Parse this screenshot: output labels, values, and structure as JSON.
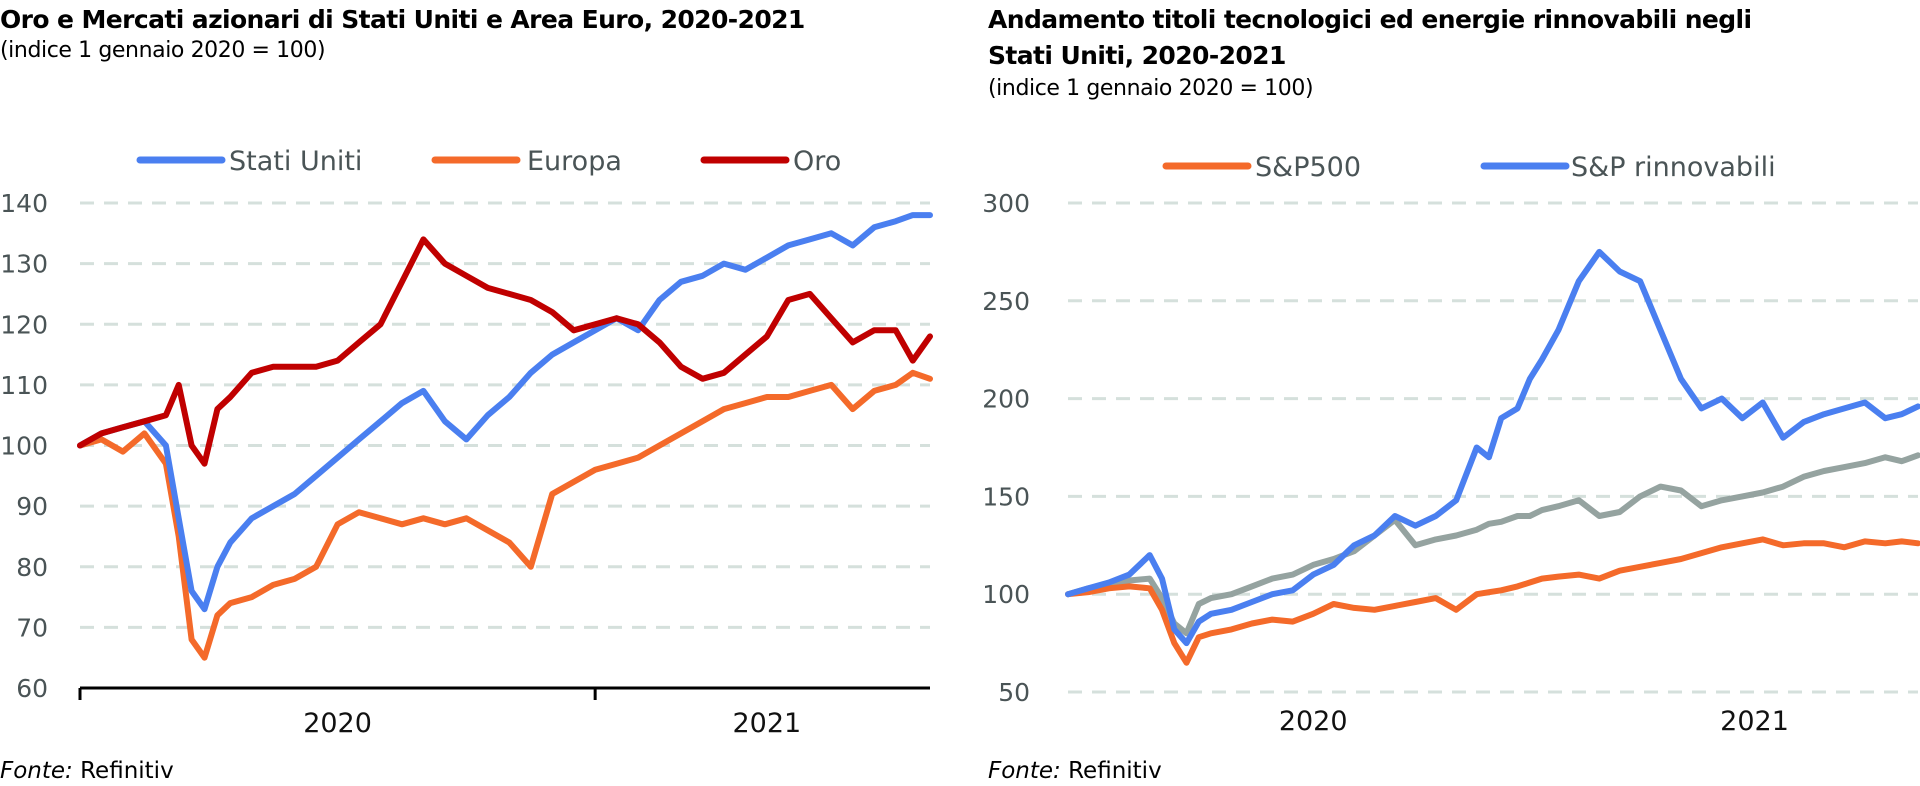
{
  "left_panel": {
    "title": "Oro e Mercati azionari di Stati Uniti e Area Euro, 2020-2021",
    "subtitle": "(indice 1 gennaio 2020 = 100)",
    "source_label": "Fonte:",
    "source_value": "Refinitiv"
  },
  "right_panel": {
    "title_line1": "Andamento titoli tecnologici ed energie rinnovabili negli",
    "title_line2": "Stati Uniti, 2020-2021",
    "subtitle": "(indice 1 gennaio 2020 = 100)",
    "source_label": "Fonte:",
    "source_value": "Refinitiv"
  },
  "chart_data": [
    {
      "type": "line",
      "title": "Oro e Mercati azionari di Stati Uniti e Area Euro, 2020-2021",
      "subtitle": "(indice 1 gennaio 2020 = 100)",
      "xlabel": "",
      "ylabel": "",
      "ylim": [
        60,
        140
      ],
      "yticks": [
        60,
        70,
        80,
        90,
        100,
        110,
        120,
        130,
        140
      ],
      "x_unit": "months since 1 Jan 2020",
      "xlim": [
        0,
        19.8
      ],
      "x_tick_at": [
        0,
        12
      ],
      "x_category_labels": [
        {
          "label": "2020",
          "center": 6
        },
        {
          "label": "2021",
          "center": 16
        }
      ],
      "grid": "horizontal dashed",
      "legend_position": "top",
      "x": [
        0,
        0.5,
        1,
        1.5,
        2,
        2.3,
        2.6,
        2.9,
        3.2,
        3.5,
        4,
        4.5,
        5,
        5.5,
        6,
        6.5,
        7,
        7.5,
        8,
        8.5,
        9,
        9.5,
        10,
        10.5,
        11,
        11.5,
        12,
        12.5,
        13,
        13.5,
        14,
        14.5,
        15,
        15.5,
        16,
        16.5,
        17,
        17.5,
        18,
        18.5,
        19,
        19.4,
        19.8
      ],
      "series": [
        {
          "name": "Stati Uniti",
          "color": "#4a7ff0",
          "values": [
            100,
            102,
            103,
            104,
            100,
            88,
            76,
            73,
            80,
            84,
            88,
            90,
            92,
            95,
            98,
            101,
            104,
            107,
            109,
            104,
            101,
            105,
            108,
            112,
            115,
            117,
            119,
            121,
            119,
            124,
            127,
            128,
            130,
            129,
            131,
            133,
            134,
            135,
            133,
            136,
            137,
            138,
            138
          ]
        },
        {
          "name": "Europa",
          "color": "#f46a2a",
          "values": [
            100,
            101,
            99,
            102,
            97,
            85,
            68,
            65,
            72,
            74,
            75,
            77,
            78,
            80,
            87,
            89,
            88,
            87,
            88,
            87,
            88,
            86,
            84,
            80,
            92,
            94,
            96,
            97,
            98,
            100,
            102,
            104,
            106,
            107,
            108,
            108,
            109,
            110,
            106,
            109,
            110,
            112,
            111
          ]
        },
        {
          "name": "Oro",
          "color": "#c00000",
          "values": [
            100,
            102,
            103,
            104,
            105,
            110,
            100,
            97,
            106,
            108,
            112,
            113,
            113,
            113,
            114,
            117,
            120,
            127,
            134,
            130,
            128,
            126,
            125,
            124,
            122,
            119,
            120,
            121,
            120,
            117,
            113,
            111,
            112,
            115,
            118,
            124,
            125,
            121,
            117,
            119,
            119,
            114,
            118
          ]
        }
      ]
    },
    {
      "type": "line",
      "title": "Andamento titoli tecnologici ed energie rinnovabili negli Stati Uniti, 2020-2021",
      "subtitle": "(indice 1 gennaio 2020 = 100)",
      "xlabel": "",
      "ylabel": "",
      "ylim": [
        50,
        300
      ],
      "yticks": [
        50,
        100,
        150,
        200,
        250,
        300
      ],
      "x_unit": "months since 1 Jan 2020",
      "xlim": [
        0,
        20.8
      ],
      "x_category_labels": [
        {
          "label": "2020",
          "center": 6
        },
        {
          "label": "2021",
          "center": 16.8
        }
      ],
      "grid": "horizontal dashed",
      "legend_position": "top",
      "x": [
        0,
        0.5,
        1,
        1.5,
        2,
        2.3,
        2.6,
        2.9,
        3.2,
        3.5,
        4,
        4.5,
        5,
        5.5,
        6,
        6.5,
        7,
        7.5,
        8,
        8.5,
        9,
        9.5,
        10,
        10.3,
        10.6,
        11,
        11.3,
        11.6,
        12,
        12.5,
        13,
        13.5,
        14,
        14.5,
        15,
        15.5,
        16,
        16.5,
        17,
        17.5,
        18,
        18.5,
        19,
        19.5,
        20,
        20.4,
        20.8
      ],
      "series": [
        {
          "name": "S&P500",
          "color": "#f46a2a",
          "values": [
            100,
            101,
            103,
            104,
            103,
            92,
            75,
            65,
            78,
            80,
            82,
            85,
            87,
            86,
            90,
            95,
            93,
            92,
            94,
            96,
            98,
            92,
            100,
            101,
            102,
            104,
            106,
            108,
            109,
            110,
            108,
            112,
            114,
            116,
            118,
            121,
            124,
            126,
            128,
            125,
            126,
            126,
            124,
            127,
            126,
            127,
            126
          ]
        },
        {
          "name": "S&P rinnovabili",
          "color": "#4a7ff0",
          "values": [
            100,
            103,
            106,
            110,
            120,
            108,
            82,
            75,
            86,
            90,
            92,
            96,
            100,
            102,
            110,
            115,
            125,
            130,
            140,
            135,
            140,
            148,
            175,
            170,
            190,
            195,
            210,
            220,
            235,
            260,
            275,
            265,
            260,
            235,
            210,
            195,
            200,
            190,
            198,
            180,
            188,
            192,
            195,
            198,
            190,
            192,
            196
          ]
        },
        {
          "name": "",
          "color": "#95a3a0",
          "values": [
            100,
            103,
            105,
            107,
            108,
            98,
            85,
            80,
            95,
            98,
            100,
            104,
            108,
            110,
            115,
            118,
            122,
            130,
            138,
            125,
            128,
            130,
            133,
            136,
            137,
            140,
            140,
            143,
            145,
            148,
            140,
            142,
            150,
            155,
            153,
            145,
            148,
            150,
            152,
            155,
            160,
            163,
            165,
            167,
            170,
            168,
            171
          ]
        }
      ]
    }
  ]
}
